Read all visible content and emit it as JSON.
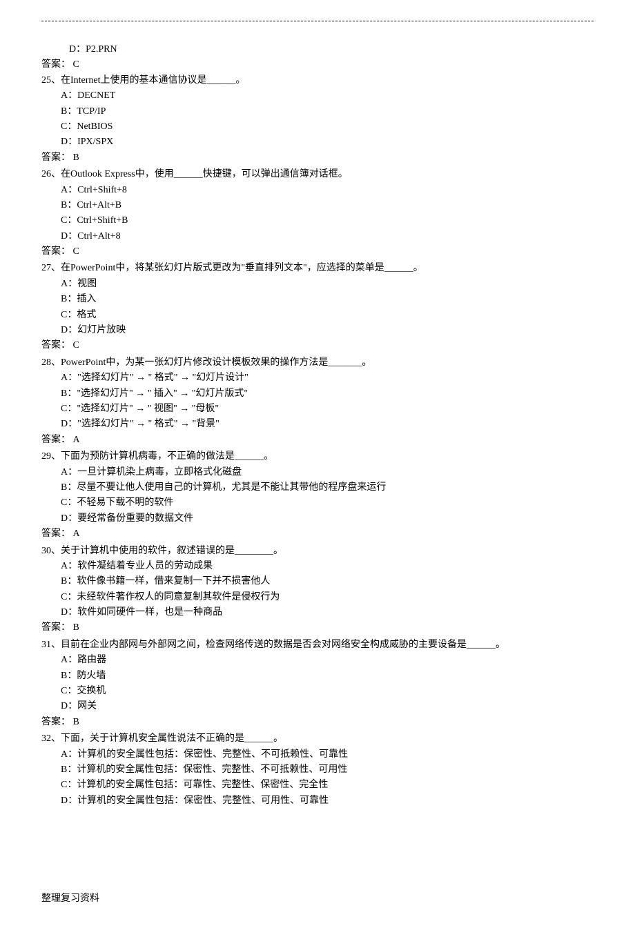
{
  "preOption": "D：P2.PRN",
  "preAnswerLabel": "答案：",
  "preAnswerValue": " C",
  "questions": [
    {
      "num": "25、",
      "stem": "在Internet上使用的基本通信协议是______。",
      "options": [
        "A：DECNET",
        "B：TCP/IP",
        "C：NetBIOS",
        "D：IPX/SPX"
      ],
      "answerLabel": "答案：",
      "answerValue": " B"
    },
    {
      "num": "26、",
      "stem": "在Outlook Express中，使用______快捷键，可以弹出通信簿对话框。",
      "options": [
        "A：Ctrl+Shift+8",
        "B：Ctrl+Alt+B",
        "C：Ctrl+Shift+B",
        "D：Ctrl+Alt+8"
      ],
      "answerLabel": "答案：",
      "answerValue": " C"
    },
    {
      "num": "27、",
      "stem": "在PowerPoint中，将某张幻灯片版式更改为\"垂直排列文本\"，应选择的菜单是______。",
      "options": [
        "A：视图",
        "B：插入",
        "C：格式",
        "D：幻灯片放映"
      ],
      "answerLabel": "答案：",
      "answerValue": " C"
    },
    {
      "num": "28、",
      "stem": "PowerPoint中，为某一张幻灯片修改设计模板效果的操作方法是_______。",
      "options": [
        "A：\"选择幻灯片\" → \" 格式\" → \"幻灯片设计\"",
        "B：\"选择幻灯片\" → \" 插入\" → \"幻灯片版式\"",
        "C：\"选择幻灯片\" → \" 视图\" → \"母板\"",
        "D：\"选择幻灯片\" → \" 格式\" → \"背景\""
      ],
      "answerLabel": "答案：",
      "answerValue": " A"
    },
    {
      "num": "29、",
      "stem": "下面为预防计算机病毒，不正确的做法是______。",
      "options": [
        "A：一旦计算机染上病毒，立即格式化磁盘",
        "B：尽量不要让他人使用自己的计算机，尤其是不能让其带他的程序盘来运行",
        "C：不轻易下载不明的软件",
        "D：要经常备份重要的数据文件"
      ],
      "answerLabel": "答案：",
      "answerValue": " A"
    },
    {
      "num": "30、",
      "stem": "关于计算机中使用的软件，叙述错误的是________。",
      "options": [
        "A：软件凝结着专业人员的劳动成果",
        "B：软件像书籍一样，借来复制一下并不损害他人",
        "C：未经软件著作权人的同意复制其软件是侵权行为",
        "D：软件如同硬件一样，也是一种商品"
      ],
      "answerLabel": "答案：",
      "answerValue": " B"
    },
    {
      "num": "31、",
      "stem": "目前在企业内部网与外部网之间，检查网络传送的数据是否会对网络安全构成威胁的主要设备是______。",
      "options": [
        "A：路由器",
        "B：防火墙",
        "C：交换机",
        "D：网关"
      ],
      "answerLabel": "答案：",
      "answerValue": " B"
    },
    {
      "num": "32、",
      "stem": "下面，关于计算机安全属性说法不正确的是______。",
      "options": [
        "A：计算机的安全属性包括：保密性、完整性、不可抵赖性、可靠性",
        "B：计算机的安全属性包括：保密性、完整性、不可抵赖性、可用性",
        "C：计算机的安全属性包括：可靠性、完整性、保密性、完全性",
        "D：计算机的安全属性包括：保密性、完整性、可用性、可靠性"
      ],
      "answerLabel": "",
      "answerValue": ""
    }
  ],
  "footer": "整理复习资料"
}
